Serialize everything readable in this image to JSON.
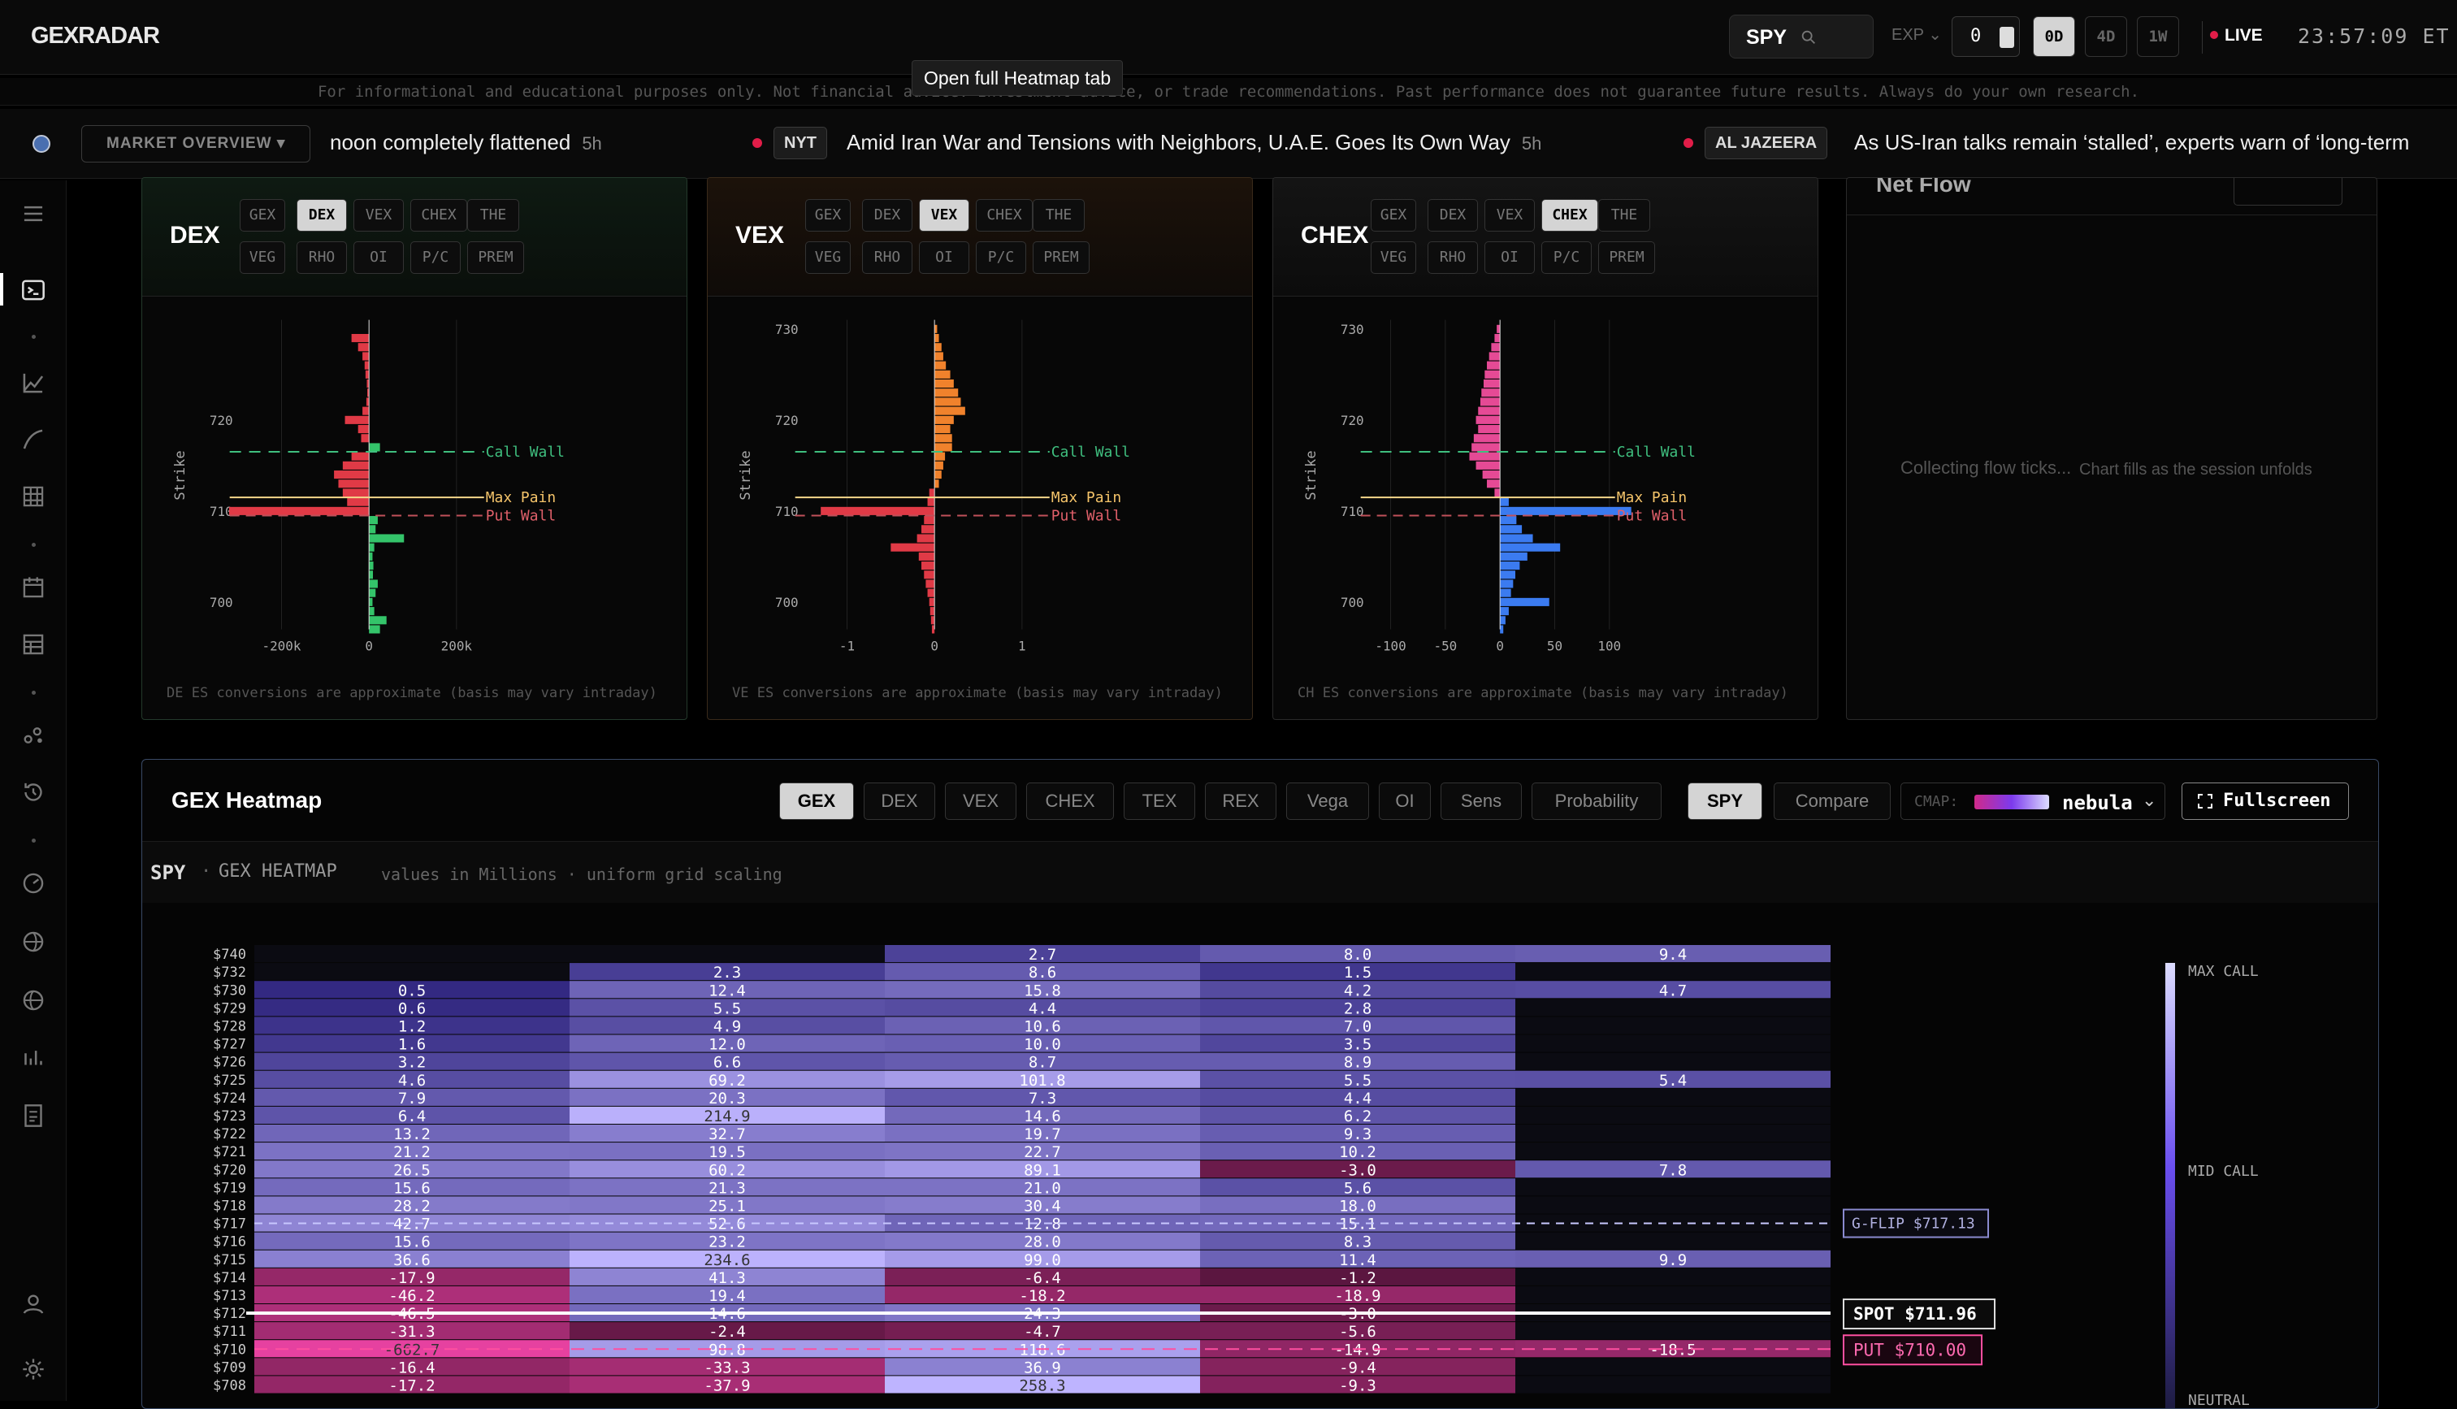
{
  "app": {
    "logo": "GEXRADAR"
  },
  "topbar": {
    "ticker": "SPY",
    "exp_label": "EXP",
    "exp_value": "0",
    "ranges": [
      "0D",
      "4D",
      "1W"
    ],
    "active_range": "0D",
    "live_label": "LIVE",
    "clock": "23:57:09 ET"
  },
  "disclaimer": "For informational and educational purposes only. Not financial advice. Investment advice, or trade recommendations. Past performance does not guarantee future results. Always do your own research.",
  "tooltip": "Open full Heatmap tab",
  "newsbar": {
    "market_overview": "MARKET OVERVIEW",
    "items": [
      {
        "source": "",
        "headline": "noon completely flattened",
        "age": "5h"
      },
      {
        "source": "NYT",
        "headline": "Amid Iran War and Tensions with Neighbors, U.A.E. Goes Its Own Way",
        "age": "5h"
      },
      {
        "source": "AL JAZEERA",
        "headline": "As US-Iran talks remain ‘stalled’, experts warn of ‘long-term",
        "age": ""
      }
    ]
  },
  "panels": [
    {
      "title": "DEX",
      "active": "DEX",
      "footer": "ES conversions are approximate (basis may vary intraday)",
      "footer_prefix": "DE"
    },
    {
      "title": "VEX",
      "active": "VEX",
      "footer": "ES conversions are approximate (basis may vary intraday)",
      "footer_prefix": "VE"
    },
    {
      "title": "CHEX",
      "active": "CHEX",
      "footer": "ES conversions are approximate (basis may vary intraday)",
      "footer_prefix": "CH"
    }
  ],
  "panel_buttons_row1": [
    "GEX",
    "DEX",
    "VEX",
    "CHEX",
    "THE"
  ],
  "panel_buttons_row2": [
    "VEG",
    "RHO",
    "OI",
    "P/C",
    "PREM"
  ],
  "flow": {
    "title": "Net Flow",
    "message": "Collecting flow ticks...",
    "sub": "Chart fills as the session unfolds"
  },
  "heatmap": {
    "title": "GEX Heatmap",
    "tabs": [
      "GEX",
      "DEX",
      "VEX",
      "CHEX",
      "TEX",
      "REX",
      "Vega",
      "OI",
      "Sens",
      "Probability"
    ],
    "active_tab": "GEX",
    "mode_tabs": [
      "SPY",
      "Compare"
    ],
    "active_mode": "SPY",
    "cmap_label": "CMAP:",
    "cmap_name": "nebula",
    "fullscreen": "Fullscreen",
    "sub_ticker": "SPY",
    "sub_title": "GEX HEATMAP",
    "sub_note": "values in Millions · uniform grid scaling",
    "markers": {
      "gflip": "G-FLIP $717.13",
      "spot": "SPOT  $711.96",
      "put": "PUT  $710.00"
    },
    "legend": {
      "max_call": "MAX CALL",
      "mid_call": "MID CALL",
      "neutral": "NEUTRAL"
    }
  },
  "chart_data": [
    {
      "type": "bar",
      "title": "DEX",
      "ylabel": "Strike",
      "xticks": [
        "-200k",
        "0",
        "200k"
      ],
      "xlim": [
        -300000,
        300000
      ],
      "yticks": [
        700,
        710,
        720
      ],
      "ylim": [
        697,
        731
      ],
      "strikes": [
        731,
        730,
        729,
        728,
        727,
        726,
        725,
        724,
        723,
        722,
        721,
        720,
        719,
        718,
        717,
        716,
        715,
        714,
        713,
        712,
        711,
        710,
        709,
        708,
        707,
        706,
        705,
        704,
        703,
        702,
        701,
        700,
        699,
        698,
        697
      ],
      "values": [
        0,
        0,
        -40000,
        -25000,
        -15000,
        -10000,
        -8000,
        -5000,
        -4000,
        -6000,
        -15000,
        -55000,
        -25000,
        -18000,
        25000,
        -40000,
        -60000,
        -80000,
        -70000,
        -60000,
        -50000,
        -320000,
        20000,
        15000,
        80000,
        12000,
        8000,
        10000,
        9000,
        20000,
        15000,
        8000,
        12000,
        40000,
        25000
      ],
      "annotations": {
        "call_wall": 716.5,
        "max_pain": 711.5,
        "put_wall": 709.5
      },
      "annotation_labels": [
        "Call Wall",
        "Max Pain",
        "Put Wall"
      ]
    },
    {
      "type": "bar",
      "title": "VEX",
      "ylabel": "Strike",
      "xticks": [
        "-1",
        "0",
        "1"
      ],
      "xlim": [
        -1.5,
        1.5
      ],
      "yticks": [
        700,
        710,
        720,
        730
      ],
      "ylim": [
        697,
        731
      ],
      "strikes": [
        730,
        729,
        728,
        727,
        726,
        725,
        724,
        723,
        722,
        721,
        720,
        719,
        718,
        717,
        716,
        715,
        714,
        713,
        712,
        711,
        710,
        709,
        708,
        707,
        706,
        705,
        704,
        703,
        702,
        701,
        700,
        699,
        698,
        697
      ],
      "values": [
        0.03,
        0.05,
        0.08,
        0.1,
        0.13,
        0.18,
        0.22,
        0.27,
        0.3,
        0.35,
        0.22,
        0.18,
        0.2,
        0.2,
        0.12,
        0.1,
        0.08,
        0.05,
        -0.06,
        -0.08,
        -1.3,
        -0.12,
        -0.15,
        -0.2,
        -0.5,
        -0.18,
        -0.15,
        -0.12,
        -0.1,
        -0.08,
        -0.06,
        -0.05,
        -0.04,
        -0.03
      ],
      "annotations": {
        "call_wall": 716.5,
        "max_pain": 711.5,
        "put_wall": 709.5
      },
      "annotation_labels": [
        "Call Wall",
        "Max Pain",
        "Put Wall"
      ]
    },
    {
      "type": "bar",
      "title": "CHEX",
      "ylabel": "Strike",
      "xticks": [
        "-100",
        "-50",
        "0",
        "50",
        "100"
      ],
      "xlim": [
        -120,
        120
      ],
      "yticks": [
        700,
        710,
        720,
        730
      ],
      "ylim": [
        697,
        731
      ],
      "strikes": [
        730,
        729,
        728,
        727,
        726,
        725,
        724,
        723,
        722,
        721,
        720,
        719,
        718,
        717,
        716,
        715,
        714,
        713,
        712,
        711,
        710,
        709,
        708,
        707,
        706,
        705,
        704,
        703,
        702,
        701,
        700,
        699,
        698,
        697
      ],
      "values": [
        -3,
        -5,
        -8,
        -10,
        -12,
        -14,
        -15,
        -17,
        -18,
        -20,
        -22,
        -20,
        -24,
        -26,
        -28,
        -22,
        -16,
        -12,
        -5,
        8,
        120,
        15,
        20,
        30,
        55,
        25,
        18,
        14,
        12,
        10,
        45,
        8,
        5,
        3
      ],
      "annotations": {
        "call_wall": 716.5,
        "max_pain": 711.5,
        "put_wall": 709.5
      },
      "annotation_labels": [
        "Call Wall",
        "Max Pain",
        "Put Wall"
      ]
    },
    {
      "type": "heatmap",
      "title": "GEX HEATMAP",
      "rows": [
        "$740",
        "$732",
        "$730",
        "$729",
        "$728",
        "$727",
        "$726",
        "$725",
        "$724",
        "$723",
        "$722",
        "$721",
        "$720",
        "$719",
        "$718",
        "$717",
        "$716",
        "$715",
        "$714",
        "$713",
        "$712",
        "$711",
        "$710",
        "$709",
        "$708"
      ],
      "values": [
        [
          "",
          "",
          "2.7",
          "8.0",
          "9.4"
        ],
        [
          "",
          "2.3",
          "8.6",
          "1.5",
          ""
        ],
        [
          "0.5",
          "12.4",
          "15.8",
          "4.2",
          "4.7"
        ],
        [
          "0.6",
          "5.5",
          "4.4",
          "2.8",
          ""
        ],
        [
          "1.2",
          "4.9",
          "10.6",
          "7.0",
          ""
        ],
        [
          "1.6",
          "12.0",
          "10.0",
          "3.5",
          ""
        ],
        [
          "3.2",
          "6.6",
          "8.7",
          "8.9",
          ""
        ],
        [
          "4.6",
          "69.2",
          "101.8",
          "5.5",
          "5.4"
        ],
        [
          "7.9",
          "20.3",
          "7.3",
          "4.4",
          ""
        ],
        [
          "6.4",
          "214.9",
          "14.6",
          "6.2",
          ""
        ],
        [
          "13.2",
          "32.7",
          "19.7",
          "9.3",
          ""
        ],
        [
          "21.2",
          "19.5",
          "22.7",
          "10.2",
          ""
        ],
        [
          "26.5",
          "60.2",
          "89.1",
          "-3.0",
          "7.8"
        ],
        [
          "15.6",
          "21.3",
          "21.0",
          "5.6",
          ""
        ],
        [
          "28.2",
          "25.1",
          "30.4",
          "18.0",
          ""
        ],
        [
          "42.7",
          "52.6",
          "12.8",
          "15.1",
          ""
        ],
        [
          "15.6",
          "23.2",
          "28.0",
          "8.3",
          ""
        ],
        [
          "36.6",
          "234.6",
          "99.0",
          "11.4",
          "9.9"
        ],
        [
          "-17.9",
          "41.3",
          "-6.4",
          "-1.2",
          ""
        ],
        [
          "-46.2",
          "19.4",
          "-18.2",
          "-18.9",
          ""
        ],
        [
          "-46.5",
          "14.6",
          "24.3",
          "-3.0",
          ""
        ],
        [
          "-31.3",
          "-2.4",
          "-4.7",
          "-5.6",
          ""
        ],
        [
          "-662.7",
          "98.8",
          "118.6",
          "-14.9",
          "-18.5"
        ],
        [
          "-16.4",
          "-33.3",
          "36.9",
          "-9.4",
          ""
        ],
        [
          "-17.2",
          "-37.9",
          "258.3",
          "-9.3",
          ""
        ]
      ]
    }
  ]
}
